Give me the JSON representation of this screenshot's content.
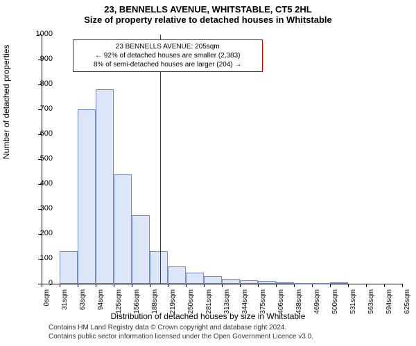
{
  "title_line1": "23, BENNELLS AVENUE, WHITSTABLE, CT5 2HL",
  "title_line2": "Size of property relative to detached houses in Whitstable",
  "chart": {
    "type": "histogram",
    "ylabel": "Number of detached properties",
    "xlabel": "Distribution of detached houses by size in Whitstable",
    "ylim": [
      0,
      1000
    ],
    "ytick_step": 100,
    "xlim": [
      0,
      625
    ],
    "xtick_step": 31.25,
    "xtick_suffix": "sqm",
    "bar_fill": "#dce6f7",
    "bar_stroke": "#6e8ec9",
    "background_color": "#ffffff",
    "vline_x": 205,
    "vline_color": "#cc0000",
    "bins": [
      {
        "x": 0,
        "count": 0
      },
      {
        "x": 31,
        "count": 130
      },
      {
        "x": 63,
        "count": 700
      },
      {
        "x": 94,
        "count": 780
      },
      {
        "x": 125,
        "count": 440
      },
      {
        "x": 156,
        "count": 275
      },
      {
        "x": 188,
        "count": 130
      },
      {
        "x": 219,
        "count": 70
      },
      {
        "x": 250,
        "count": 45
      },
      {
        "x": 281,
        "count": 30
      },
      {
        "x": 313,
        "count": 20
      },
      {
        "x": 344,
        "count": 15
      },
      {
        "x": 375,
        "count": 10
      },
      {
        "x": 406,
        "count": 5
      },
      {
        "x": 438,
        "count": 2
      },
      {
        "x": 469,
        "count": 2
      },
      {
        "x": 500,
        "count": 5
      },
      {
        "x": 531,
        "count": 0
      },
      {
        "x": 563,
        "count": 0
      },
      {
        "x": 594,
        "count": 0
      }
    ],
    "annotation": {
      "lines": [
        "23 BENNELLS AVENUE: 205sqm",
        "← 92% of detached houses are smaller (2,383)",
        "8% of semi-detached houses are larger (204) →"
      ],
      "border_color": "#cc0000",
      "x_center": 210,
      "y_top": 980
    }
  },
  "footer": {
    "line1": "Contains HM Land Registry data © Crown copyright and database right 2024.",
    "line2": "Contains public sector information licensed under the Open Government Licence v3.0."
  }
}
